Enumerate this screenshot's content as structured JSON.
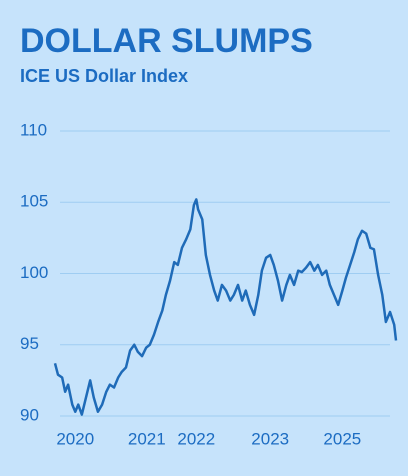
{
  "chart_data": {
    "type": "line",
    "title": "DOLLAR SLUMPS",
    "subtitle": "ICE US Dollar Index",
    "background": "#c6e3fb",
    "text_color": "#1c6cc2",
    "grid_color": "#9fcdf2",
    "grid": true,
    "x": [
      2020.0,
      2020.05,
      2020.12,
      2020.17,
      2020.22,
      2020.29,
      2020.34,
      2020.39,
      2020.45,
      2020.52,
      2020.59,
      2020.65,
      2020.72,
      2020.79,
      2020.86,
      2020.92,
      2020.99,
      2021.06,
      2021.12,
      2021.19,
      2021.26,
      2021.33,
      2021.39,
      2021.46,
      2021.53,
      2021.59,
      2021.66,
      2021.73,
      2021.8,
      2021.86,
      2021.93,
      2022.0,
      2022.06,
      2022.13,
      2022.2,
      2022.27,
      2022.33,
      2022.37,
      2022.4,
      2022.47,
      2022.53,
      2022.6,
      2022.67,
      2022.73,
      2022.8,
      2022.87,
      2022.94,
      2023.0,
      2023.07,
      2023.14,
      2023.2,
      2023.27,
      2023.34,
      2023.41,
      2023.47,
      2023.54,
      2023.61,
      2023.67,
      2023.74,
      2023.81,
      2023.88,
      2023.94,
      2024.01,
      2024.08,
      2024.14,
      2024.21,
      2024.28,
      2024.35,
      2024.41,
      2024.48,
      2024.55,
      2024.61,
      2024.68,
      2024.75,
      2024.82,
      2024.88,
      2024.95,
      2025.02,
      2025.08,
      2025.15,
      2025.22,
      2025.29,
      2025.35,
      2025.42,
      2025.49,
      2025.55,
      2025.62,
      2025.69,
      2025.72
    ],
    "series": [
      {
        "name": "ICE US Dollar Index",
        "color": "#1f6bb8",
        "values": [
          93.7,
          92.9,
          92.7,
          91.7,
          92.2,
          90.8,
          90.3,
          90.8,
          90.1,
          91.3,
          92.5,
          91.3,
          90.3,
          90.8,
          91.7,
          92.2,
          92.0,
          92.7,
          93.1,
          93.4,
          94.6,
          95.0,
          94.5,
          94.2,
          94.8,
          95.0,
          95.7,
          96.6,
          97.4,
          98.5,
          99.5,
          100.8,
          100.6,
          101.8,
          102.4,
          103.1,
          104.8,
          105.2,
          104.5,
          103.8,
          101.3,
          99.9,
          98.8,
          98.1,
          99.2,
          98.8,
          98.1,
          98.5,
          99.2,
          98.1,
          98.8,
          97.8,
          97.1,
          98.5,
          100.2,
          101.1,
          101.3,
          100.6,
          99.5,
          98.1,
          99.2,
          99.9,
          99.2,
          100.2,
          100.1,
          100.4,
          100.8,
          100.2,
          100.6,
          99.9,
          100.2,
          99.2,
          98.5,
          97.8,
          98.8,
          99.7,
          100.6,
          101.5,
          102.4,
          103.0,
          102.8,
          101.8,
          101.7,
          99.9,
          98.5,
          96.6,
          97.3,
          96.4,
          95.3
        ]
      }
    ],
    "xlim": [
      2020.0,
      2025.72
    ],
    "xticks": [
      {
        "value": 2020.34,
        "label": "2020"
      },
      {
        "value": 2021.54,
        "label": "2021"
      },
      {
        "value": 2022.37,
        "label": "2022"
      },
      {
        "value": 2023.61,
        "label": "2023"
      },
      {
        "value": 2024.82,
        "label": "2025"
      }
    ],
    "ylim": [
      90,
      110
    ],
    "yticks": [
      90,
      95,
      100,
      105,
      110
    ]
  }
}
